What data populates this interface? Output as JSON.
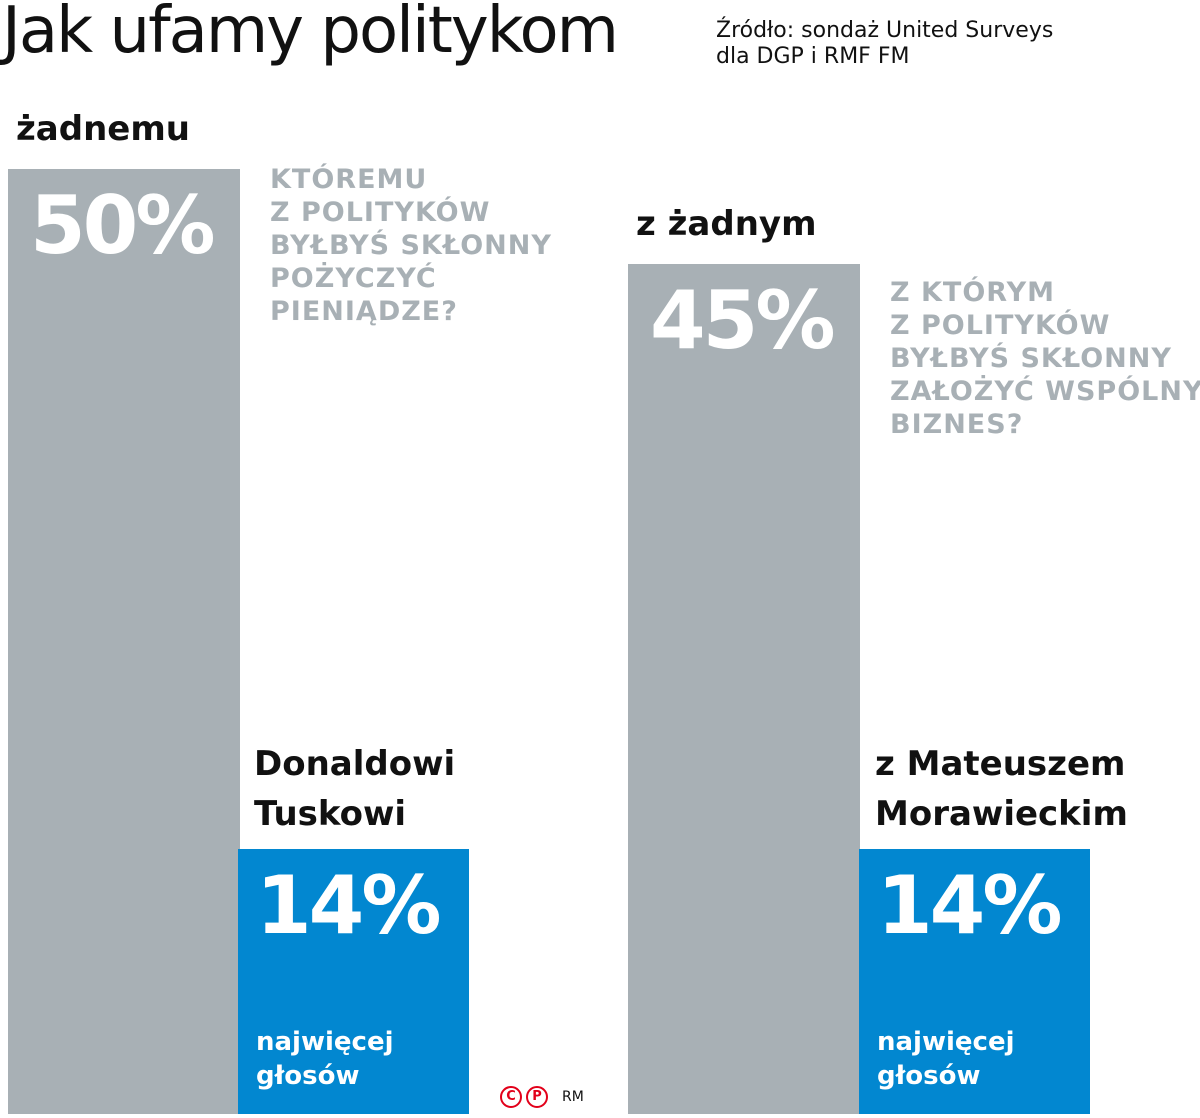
{
  "title": "Jak ufamy politykom",
  "source": [
    "Źródło: sondaż United Surveys",
    "dla DGP i RMF FM"
  ],
  "credit": {
    "copyright": "C",
    "photo": "P",
    "author": "RM"
  },
  "chart_data": [
    {
      "type": "bar",
      "question": [
        "KTÓREMU",
        "Z POLITYKÓW",
        "BYŁBYŚ SKŁONNY",
        "POŻYCZYĆ",
        "PIENIĄDZE?"
      ],
      "categories": [
        "żadnemu",
        "Donaldowi Tuskowi"
      ],
      "values": [
        50,
        14
      ],
      "value_labels": [
        "50%",
        "14%"
      ],
      "name_lines": [
        "Donaldowi",
        "Tuskowi"
      ],
      "note": [
        "najwięcej",
        "głosów"
      ],
      "colors": [
        "#a8b0b5",
        "#0287d0"
      ],
      "unit": "%"
    },
    {
      "type": "bar",
      "question": [
        "Z KTÓRYM",
        "Z POLITYKÓW",
        "BYŁBYŚ SKŁONNY",
        "ZAŁOŻYĆ WSPÓLNY",
        "BIZNES?"
      ],
      "categories": [
        "z żadnym",
        "z Mateuszem Morawieckim"
      ],
      "values": [
        45,
        14
      ],
      "value_labels": [
        "45%",
        "14%"
      ],
      "name_lines": [
        "z Mateuszem",
        "Morawieckim"
      ],
      "note": [
        "najwięcej",
        "głosów"
      ],
      "colors": [
        "#a8b0b5",
        "#0287d0"
      ],
      "unit": "%"
    }
  ]
}
